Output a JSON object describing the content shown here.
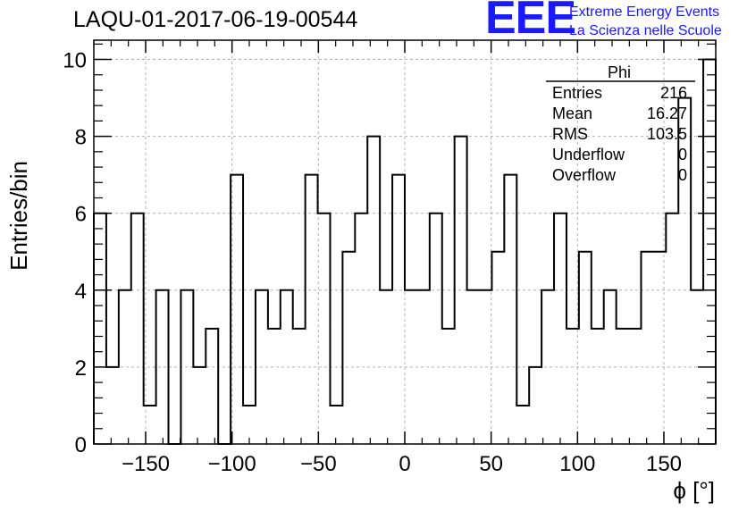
{
  "header": {
    "run_title": "LAQU-01-2017-06-19-00544",
    "logo_text": "EEE",
    "brand_line1": "Extreme Energy Events",
    "brand_line2": "La Scienza nelle Scuole"
  },
  "stats_box": {
    "title": "Phi",
    "rows": [
      {
        "label": "Entries",
        "value": "216"
      },
      {
        "label": "Mean",
        "value": "16.27"
      },
      {
        "label": "RMS",
        "value": "103.5"
      },
      {
        "label": "Underflow",
        "value": "0"
      },
      {
        "label": "Overflow",
        "value": "0"
      }
    ]
  },
  "chart_data": {
    "type": "bar",
    "histogram": true,
    "xlabel": "ϕ [°]",
    "ylabel": "Entries/bin",
    "xlim": [
      -180,
      180
    ],
    "ylim": [
      0,
      10.5
    ],
    "bin_width": 7.2,
    "x_ticks": [
      -150,
      -100,
      -50,
      0,
      50,
      100,
      150
    ],
    "x_tick_labels": [
      "−150",
      "−100",
      "−50",
      "0",
      "50",
      "100",
      "150"
    ],
    "y_ticks": [
      0,
      2,
      4,
      6,
      8,
      10
    ],
    "y_tick_labels": [
      "0",
      "2",
      "4",
      "6",
      "8",
      "10"
    ],
    "grid": true,
    "line_color": "#000000",
    "values": [
      6,
      2,
      4,
      6,
      1,
      4,
      0,
      4,
      2,
      3,
      0,
      7,
      1,
      4,
      3,
      4,
      3,
      7,
      6,
      1,
      5,
      6,
      8,
      4,
      7,
      4,
      4,
      6,
      3,
      8,
      4,
      4,
      5,
      7,
      1,
      2,
      4,
      6,
      3,
      5,
      3,
      4,
      3,
      3,
      5,
      5,
      6,
      9,
      4,
      10
    ]
  }
}
